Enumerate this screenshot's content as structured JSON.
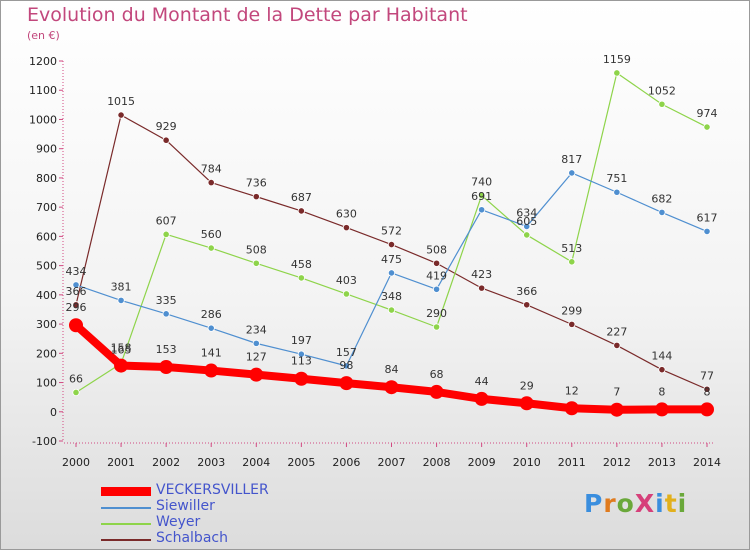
{
  "header": {
    "title": "Evolution du Montant de la Dette par Habitant",
    "unit": "(en €)"
  },
  "brand": {
    "text": "ProXiti",
    "colors": [
      "#3a8ede",
      "#e07b1e",
      "#6aa83a",
      "#d6407a",
      "#3a8ede",
      "#e2b01c",
      "#6aa83a"
    ]
  },
  "chart_data": {
    "type": "line",
    "title": "Evolution du Montant de la Dette par Habitant",
    "ylabel": "(en €)",
    "xlabel": "",
    "x": [
      "2000",
      "2001",
      "2002",
      "2003",
      "2004",
      "2005",
      "2006",
      "2007",
      "2008",
      "2009",
      "2010",
      "2011",
      "2012",
      "2013",
      "2014"
    ],
    "ylim": [
      -100,
      1200
    ],
    "yticks": [
      "-100",
      "0",
      "100",
      "200",
      "300",
      "400",
      "500",
      "600",
      "700",
      "800",
      "900",
      "1000",
      "1100",
      "1200"
    ],
    "grid": false,
    "legend_placement": "bottom-left",
    "series": [
      {
        "name": "VECKERSVILLER",
        "color": "#ff0000",
        "values": [
          296,
          158,
          153,
          141,
          127,
          113,
          98,
          84,
          68,
          44,
          29,
          12,
          7,
          8,
          8
        ],
        "labels": [
          "296",
          "158",
          "153",
          "141",
          "127",
          "113",
          "98",
          "84",
          "68",
          "44",
          "29",
          "12",
          "7",
          "8",
          "8"
        ]
      },
      {
        "name": "Siewiller",
        "color": "#4f8fd0",
        "values": [
          434,
          381,
          335,
          286,
          234,
          197,
          157,
          475,
          419,
          691,
          634,
          817,
          751,
          682,
          617
        ],
        "labels": [
          "434",
          "381",
          "335",
          "286",
          "234",
          "197",
          "157",
          "475",
          "419",
          "691",
          "634",
          "817",
          "751",
          "682",
          "617"
        ]
      },
      {
        "name": "Weyer",
        "color": "#8ed44a",
        "values": [
          66,
          165,
          607,
          560,
          508,
          458,
          403,
          348,
          290,
          740,
          605,
          513,
          1159,
          1052,
          974
        ],
        "labels": [
          "66",
          "165",
          "607",
          "560",
          "508",
          "458",
          "403",
          "348",
          "290",
          "740",
          "605",
          "513",
          "1159",
          "1052",
          "974"
        ]
      },
      {
        "name": "Schalbach",
        "color": "#7a2a2a",
        "values": [
          366,
          1015,
          929,
          784,
          736,
          687,
          630,
          572,
          508,
          423,
          366,
          299,
          227,
          144,
          77
        ],
        "labels": [
          "366",
          "1015",
          "929",
          "784",
          "736",
          "687",
          "630",
          "572",
          "508",
          "423",
          "366",
          "299",
          "227",
          "144",
          "77"
        ]
      }
    ]
  }
}
